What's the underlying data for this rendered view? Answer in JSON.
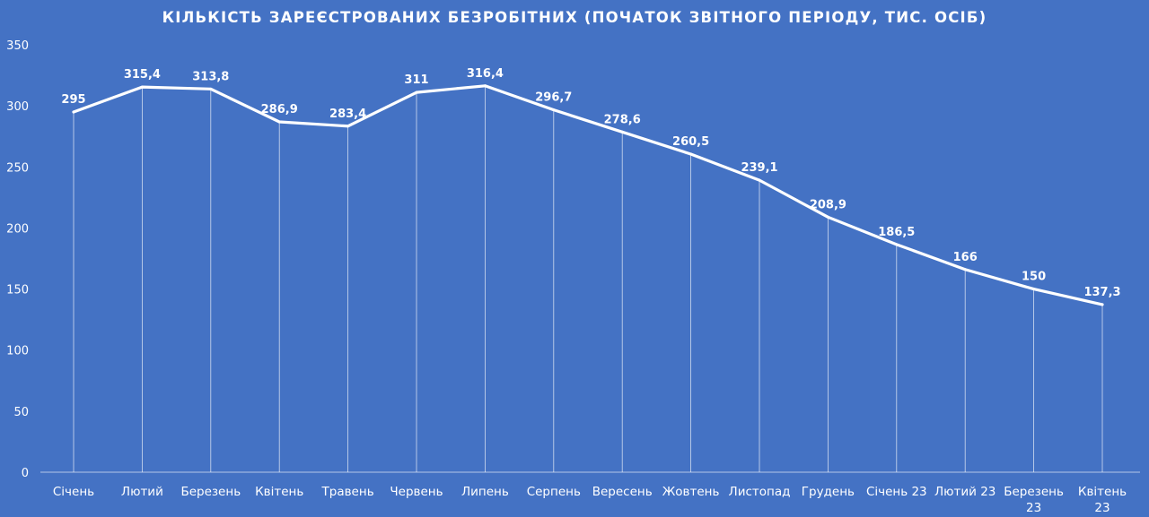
{
  "chart_data": {
    "type": "line",
    "title": "КІЛЬКІСТЬ ЗАРЕЄСТРОВАНИХ БЕЗРОБІТНИХ (ПОЧАТОК ЗВІТНОГО ПЕРІОДУ, ТИС. ОСІБ)",
    "xlabel": "",
    "ylabel": "",
    "ylim": [
      0,
      350
    ],
    "yticks": [
      0,
      50,
      100,
      150,
      200,
      250,
      300,
      350
    ],
    "grid": "vertical drop lines",
    "legend": "none",
    "categories": [
      [
        "Січень"
      ],
      [
        "Лютий"
      ],
      [
        "Березень"
      ],
      [
        "Квітень"
      ],
      [
        "Травень"
      ],
      [
        "Червень"
      ],
      [
        "Липень"
      ],
      [
        "Серпень"
      ],
      [
        "Вересень"
      ],
      [
        "Жовтень"
      ],
      [
        "Листопад"
      ],
      [
        "Грудень"
      ],
      [
        "Січень 23"
      ],
      [
        "Лютий 23"
      ],
      [
        "Березень",
        "23"
      ],
      [
        "Квітень",
        "23"
      ]
    ],
    "series": [
      {
        "values": [
          295,
          315.4,
          313.8,
          286.9,
          283.4,
          311,
          316.4,
          296.7,
          278.6,
          260.5,
          239.1,
          208.9,
          186.5,
          166,
          150,
          137.3
        ],
        "labels": [
          "295",
          "315,4",
          "313,8",
          "286,9",
          "283,4",
          "311",
          "316,4",
          "296,7",
          "278,6",
          "260,5",
          "239,1",
          "208,9",
          "186,5",
          "166",
          "150",
          "137,3"
        ]
      }
    ],
    "colors": {
      "background": "#4472c4",
      "line": "#ffffff",
      "text": "#ffffff",
      "droplines": "#ffffff"
    }
  }
}
